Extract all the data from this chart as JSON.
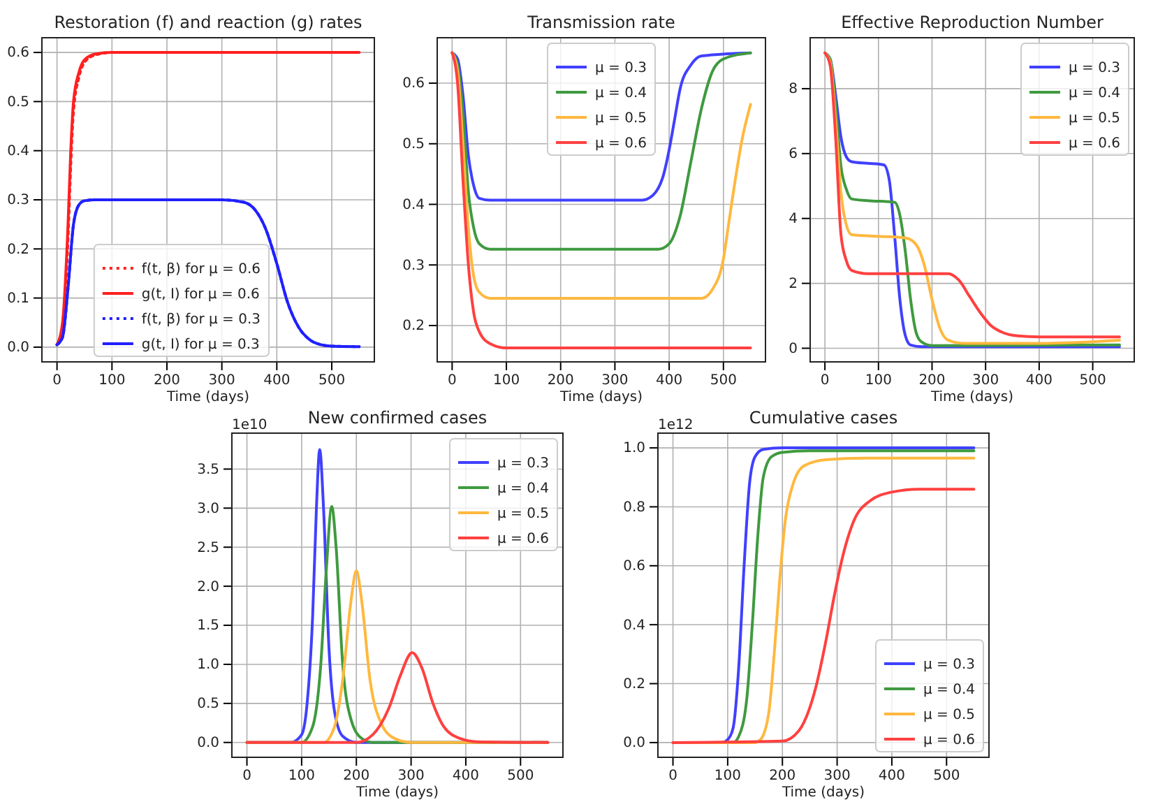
{
  "chart_data": [
    {
      "type": "line",
      "title": "Restoration (f) and reaction (g) rates",
      "xlabel": "Time (days)",
      "xlim": [
        -27.5,
        577.5
      ],
      "xticks": [
        0,
        100,
        200,
        300,
        400,
        500
      ],
      "ylim": [
        -0.03,
        0.63
      ],
      "yticks": [
        {
          "value": 0,
          "label": "0.0"
        },
        0.1,
        0.2,
        0.3,
        0.4,
        0.5,
        0.6
      ],
      "grid": true,
      "legend": "bottom",
      "series": [
        {
          "name": "f(t, β) for μ = 0.6",
          "color": "#ff2020",
          "line_style": "dotted",
          "x": [
            0,
            10,
            20,
            25,
            30,
            40,
            50,
            70,
            100,
            550
          ],
          "values": [
            0.005,
            0.04,
            0.22,
            0.37,
            0.48,
            0.55,
            0.58,
            0.595,
            0.6,
            0.6
          ]
        },
        {
          "name": "g(t, I) for μ = 0.6",
          "color": "#ff2020",
          "line_style": "solid",
          "x": [
            0,
            10,
            20,
            25,
            30,
            40,
            50,
            70,
            100,
            550
          ],
          "values": [
            0.005,
            0.05,
            0.25,
            0.4,
            0.5,
            0.56,
            0.585,
            0.597,
            0.6,
            0.6
          ]
        },
        {
          "name": "f(t, β) for μ = 0.3",
          "color": "#2020ff",
          "line_style": "dotted",
          "x": [
            0,
            10,
            20,
            30,
            40,
            50,
            70,
            300,
            340,
            360,
            380,
            400,
            420,
            440,
            460,
            480,
            500,
            550
          ],
          "values": [
            0.005,
            0.02,
            0.12,
            0.25,
            0.29,
            0.298,
            0.3,
            0.3,
            0.295,
            0.28,
            0.24,
            0.17,
            0.09,
            0.04,
            0.015,
            0.005,
            0.002,
            0.001
          ]
        },
        {
          "name": "g(t, I) for μ = 0.3",
          "color": "#2020ff",
          "line_style": "solid",
          "x": [
            0,
            10,
            20,
            30,
            40,
            50,
            70,
            300,
            340,
            360,
            380,
            400,
            420,
            440,
            460,
            480,
            500,
            550
          ],
          "values": [
            0.005,
            0.02,
            0.12,
            0.25,
            0.29,
            0.298,
            0.3,
            0.3,
            0.295,
            0.28,
            0.24,
            0.17,
            0.09,
            0.04,
            0.015,
            0.005,
            0.002,
            0.001
          ]
        }
      ]
    },
    {
      "type": "line",
      "title": "Transmission rate",
      "xlabel": "Time (days)",
      "xlim": [
        -27.5,
        577.5
      ],
      "xticks": [
        0,
        100,
        200,
        300,
        400,
        500
      ],
      "ylim": [
        0.14,
        0.675
      ],
      "yticks": [
        0.2,
        0.3,
        0.4,
        0.5,
        0.6
      ],
      "grid": true,
      "legend": "top",
      "series": [
        {
          "name": "μ = 0.3",
          "color": "#4040ff",
          "x": [
            0,
            10,
            20,
            30,
            40,
            50,
            70,
            350,
            370,
            390,
            400,
            410,
            420,
            440,
            460,
            550
          ],
          "values": [
            0.65,
            0.64,
            0.58,
            0.48,
            0.43,
            0.41,
            0.407,
            0.407,
            0.415,
            0.45,
            0.49,
            0.54,
            0.59,
            0.63,
            0.645,
            0.65
          ]
        },
        {
          "name": "μ = 0.4",
          "color": "#3f9a3f",
          "x": [
            0,
            10,
            20,
            30,
            40,
            50,
            70,
            380,
            400,
            420,
            440,
            460,
            480,
            500,
            550
          ],
          "values": [
            0.65,
            0.63,
            0.55,
            0.42,
            0.36,
            0.335,
            0.326,
            0.326,
            0.335,
            0.38,
            0.47,
            0.56,
            0.62,
            0.64,
            0.65
          ]
        },
        {
          "name": "μ = 0.5",
          "color": "#ffb83f",
          "x": [
            0,
            10,
            20,
            30,
            40,
            50,
            70,
            460,
            480,
            500,
            510,
            520,
            535,
            550
          ],
          "values": [
            0.65,
            0.62,
            0.5,
            0.36,
            0.28,
            0.255,
            0.245,
            0.245,
            0.26,
            0.31,
            0.37,
            0.43,
            0.51,
            0.565
          ]
        },
        {
          "name": "μ = 0.6",
          "color": "#ff4040",
          "x": [
            0,
            10,
            20,
            30,
            40,
            50,
            70,
            100,
            550
          ],
          "values": [
            0.65,
            0.6,
            0.44,
            0.3,
            0.22,
            0.19,
            0.17,
            0.163,
            0.163
          ]
        }
      ]
    },
    {
      "type": "line",
      "title": "Effective Reproduction Number",
      "xlabel": "Time (days)",
      "xlim": [
        -27.5,
        577.5
      ],
      "xticks": [
        0,
        100,
        200,
        300,
        400,
        500
      ],
      "ylim": [
        -0.42,
        9.57
      ],
      "yticks": [
        0,
        2,
        4,
        6,
        8
      ],
      "grid": true,
      "legend": "top right",
      "series": [
        {
          "name": "μ = 0.3",
          "color": "#4040ff",
          "x": [
            0,
            10,
            20,
            30,
            40,
            50,
            80,
            110,
            120,
            130,
            140,
            150,
            160,
            180,
            550
          ],
          "values": [
            9.1,
            8.9,
            7.8,
            6.5,
            5.9,
            5.75,
            5.7,
            5.65,
            5.2,
            3.5,
            1.5,
            0.4,
            0.1,
            0.05,
            0.05
          ]
        },
        {
          "name": "μ = 0.4",
          "color": "#3f9a3f",
          "x": [
            0,
            10,
            20,
            30,
            40,
            50,
            80,
            130,
            140,
            150,
            160,
            170,
            180,
            200,
            550
          ],
          "values": [
            9.1,
            8.9,
            7.5,
            5.6,
            4.9,
            4.6,
            4.55,
            4.5,
            4.1,
            3.0,
            1.5,
            0.5,
            0.2,
            0.08,
            0.1
          ]
        },
        {
          "name": "μ = 0.5",
          "color": "#ffb83f",
          "x": [
            0,
            10,
            20,
            30,
            40,
            50,
            100,
            150,
            170,
            185,
            200,
            215,
            230,
            260,
            400,
            550
          ],
          "values": [
            9.1,
            8.8,
            7.0,
            4.8,
            3.8,
            3.5,
            3.45,
            3.4,
            3.2,
            2.6,
            1.5,
            0.6,
            0.25,
            0.15,
            0.15,
            0.25
          ]
        },
        {
          "name": "μ = 0.6",
          "color": "#ff4040",
          "x": [
            0,
            10,
            20,
            30,
            40,
            50,
            80,
            230,
            250,
            270,
            290,
            310,
            330,
            360,
            400,
            550
          ],
          "values": [
            9.1,
            8.7,
            6.5,
            3.5,
            2.7,
            2.4,
            2.3,
            2.3,
            2.1,
            1.6,
            1.1,
            0.7,
            0.5,
            0.38,
            0.35,
            0.35
          ]
        }
      ]
    },
    {
      "type": "line",
      "title": "New confirmed cases",
      "xlabel": "Time (days)",
      "annotations": [
        "1e10"
      ],
      "xlim": [
        -27.5,
        577.5
      ],
      "xticks": [
        0,
        100,
        200,
        300,
        400,
        500
      ],
      "ylim": [
        -0.19,
        3.96
      ],
      "yticks": [
        {
          "value": 0,
          "label": "0.0"
        },
        0.5,
        {
          "value": 1,
          "label": "1.0"
        },
        1.5,
        {
          "value": 2,
          "label": "2.0"
        },
        2.5,
        {
          "value": 3,
          "label": "3.0"
        },
        3.5
      ],
      "grid": true,
      "legend": "top right",
      "series": [
        {
          "name": "μ = 0.3",
          "color": "#4040ff",
          "x": [
            0,
            80,
            100,
            110,
            120,
            127,
            133,
            140,
            150,
            160,
            175,
            200,
            550
          ],
          "values": [
            0,
            0,
            0.1,
            0.5,
            1.6,
            3,
            3.75,
            3,
            1.2,
            0.4,
            0.08,
            0,
            0
          ]
        },
        {
          "name": "μ = 0.4",
          "color": "#3f9a3f",
          "x": [
            0,
            100,
            120,
            135,
            145,
            155,
            163,
            175,
            190,
            210,
            230,
            550
          ],
          "values": [
            0,
            0,
            0.2,
            1,
            2.2,
            3.02,
            2.5,
            1,
            0.3,
            0.05,
            0,
            0
          ]
        },
        {
          "name": "μ = 0.5",
          "color": "#ffb83f",
          "x": [
            0,
            140,
            160,
            175,
            190,
            200,
            210,
            225,
            245,
            270,
            300,
            550
          ],
          "values": [
            0,
            0,
            0.2,
            0.8,
            1.8,
            2.2,
            1.8,
            0.8,
            0.25,
            0.05,
            0,
            0
          ]
        },
        {
          "name": "μ = 0.6",
          "color": "#ff4040",
          "x": [
            0,
            200,
            230,
            260,
            280,
            302,
            320,
            340,
            360,
            390,
            420,
            550
          ],
          "values": [
            0,
            0,
            0.1,
            0.45,
            0.85,
            1.15,
            0.95,
            0.5,
            0.2,
            0.05,
            0.01,
            0
          ]
        }
      ]
    },
    {
      "type": "line",
      "title": "Cumulative cases",
      "xlabel": "Time (days)",
      "annotations": [
        "1e12"
      ],
      "xlim": [
        -27.5,
        577.5
      ],
      "xticks": [
        0,
        100,
        200,
        300,
        400,
        500
      ],
      "ylim": [
        -0.05,
        1.05
      ],
      "yticks": [
        {
          "value": 0,
          "label": "0.0"
        },
        0.2,
        0.4,
        0.6,
        0.8,
        {
          "value": 1,
          "label": "1.0"
        }
      ],
      "grid": true,
      "legend": "bottom right",
      "series": [
        {
          "name": "μ = 0.3",
          "color": "#4040ff",
          "x": [
            0,
            90,
            100,
            110,
            120,
            130,
            140,
            150,
            165,
            200,
            550
          ],
          "values": [
            0,
            0,
            0.01,
            0.05,
            0.25,
            0.6,
            0.88,
            0.97,
            0.995,
            1,
            1
          ]
        },
        {
          "name": "μ = 0.4",
          "color": "#3f9a3f",
          "x": [
            0,
            110,
            120,
            135,
            145,
            155,
            165,
            180,
            200,
            250,
            550
          ],
          "values": [
            0,
            0,
            0.02,
            0.15,
            0.4,
            0.7,
            0.9,
            0.97,
            0.985,
            0.99,
            0.99
          ]
        },
        {
          "name": "μ = 0.5",
          "color": "#ffb83f",
          "x": [
            0,
            150,
            160,
            175,
            185,
            195,
            205,
            220,
            240,
            280,
            350,
            550
          ],
          "values": [
            0,
            0,
            0.01,
            0.1,
            0.3,
            0.55,
            0.75,
            0.88,
            0.94,
            0.96,
            0.965,
            0.965
          ]
        },
        {
          "name": "μ = 0.6",
          "color": "#ff4040",
          "x": [
            0,
            200,
            230,
            260,
            280,
            295,
            310,
            330,
            360,
            400,
            450,
            550
          ],
          "values": [
            0,
            0.005,
            0.04,
            0.18,
            0.35,
            0.5,
            0.63,
            0.75,
            0.82,
            0.85,
            0.86,
            0.86
          ]
        }
      ]
    }
  ]
}
